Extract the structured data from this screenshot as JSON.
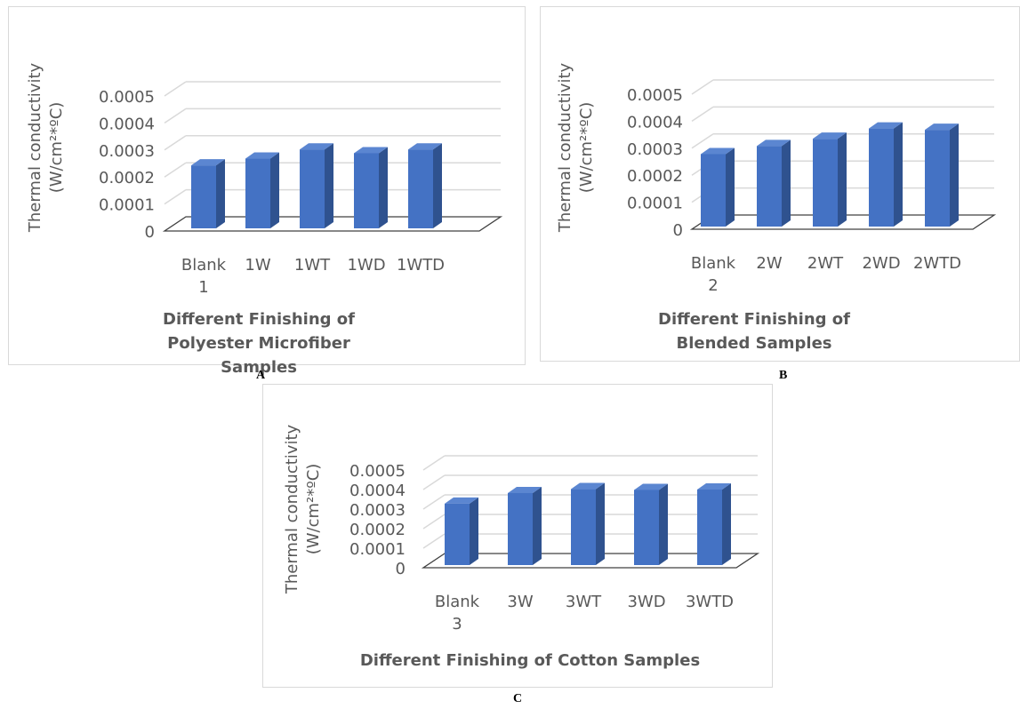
{
  "chart_data": [
    {
      "type": "bar",
      "panel_letter": "A",
      "categories": [
        "Blank 1",
        "1W",
        "1WT",
        "1WD",
        "1WTD"
      ],
      "values": [
        0.000243,
        0.000268,
        0.000302,
        0.000288,
        0.000302
      ],
      "ylabel_line1": "Thermal conductivity",
      "ylabel_line2": "(W/cm²*ºC)",
      "xlabel": "Different Finishing of Polyester Microfiber Samples",
      "yticks": [
        "0",
        "0.0001",
        "0.0002",
        "0.0003",
        "0.0004",
        "0.0005"
      ],
      "ylim": [
        0,
        0.0005
      ],
      "grid": true,
      "style": "3d-column",
      "colors": {
        "bar_front": "#4472c4",
        "bar_side": "#2f528f",
        "bar_top": "#5b86d1",
        "grid": "#d9d9d9",
        "text": "#595959"
      }
    },
    {
      "type": "bar",
      "panel_letter": "B",
      "categories": [
        "Blank 2",
        "2W",
        "2WT",
        "2WD",
        "2WTD"
      ],
      "values": [
        0.000278,
        0.000308,
        0.000335,
        0.000373,
        0.000368
      ],
      "ylabel_line1": "Thermal conductivity",
      "ylabel_line2": "(W/cm²*ºC)",
      "xlabel": "Different Finishing of Blended Samples",
      "yticks": [
        "0",
        "0.0001",
        "0.0002",
        "0.0003",
        "0.0004",
        "0.0005"
      ],
      "ylim": [
        0,
        0.0005
      ],
      "grid": true,
      "style": "3d-column",
      "colors": {
        "bar_front": "#4472c4",
        "bar_side": "#2f528f",
        "bar_top": "#5b86d1",
        "grid": "#d9d9d9",
        "text": "#595959"
      }
    },
    {
      "type": "bar",
      "panel_letter": "C",
      "categories": [
        "Blank 3",
        "3W",
        "3WT",
        "3WD",
        "3WTD"
      ],
      "values": [
        0.000328,
        0.000382,
        0.000402,
        0.000398,
        0.0004
      ],
      "ylabel_line1": "Thermal conductivity",
      "ylabel_line2": "(W/cm²*ºC)",
      "xlabel": "Different Finishing of Cotton Samples",
      "yticks": [
        "0",
        "0.0001",
        "0.0002",
        "0.0003",
        "0.0004",
        "0.0005"
      ],
      "ylim": [
        0,
        0.0005
      ],
      "grid": true,
      "style": "3d-column",
      "colors": {
        "bar_front": "#4472c4",
        "bar_side": "#2f528f",
        "bar_top": "#5b86d1",
        "grid": "#d9d9d9",
        "text": "#595959"
      }
    }
  ]
}
